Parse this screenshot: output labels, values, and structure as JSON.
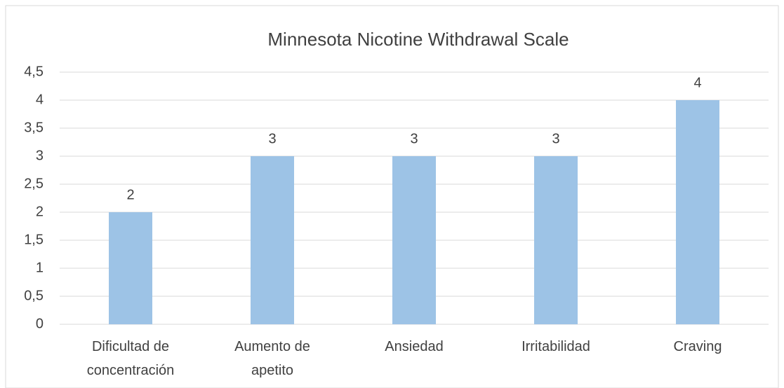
{
  "chart_data": {
    "type": "bar",
    "title": "Minnesota Nicotine Withdrawal Scale",
    "categories": [
      "Dificultad de concentración",
      "Aumento de apetito",
      "Ansiedad",
      "Irritabilidad",
      "Craving"
    ],
    "values": [
      2,
      3,
      3,
      3,
      4
    ],
    "color": "#9dc3e6",
    "ylim": [
      0,
      4.5
    ],
    "yticks": [
      0,
      {
        "value": 0.5,
        "label": "0,5"
      },
      1,
      {
        "value": 1.5,
        "label": "1,5"
      },
      2,
      {
        "value": 2.5,
        "label": "2,5"
      },
      3,
      {
        "value": 3.5,
        "label": "3,5"
      },
      4,
      {
        "value": 4.5,
        "label": "4,5"
      }
    ],
    "grid": true
  }
}
